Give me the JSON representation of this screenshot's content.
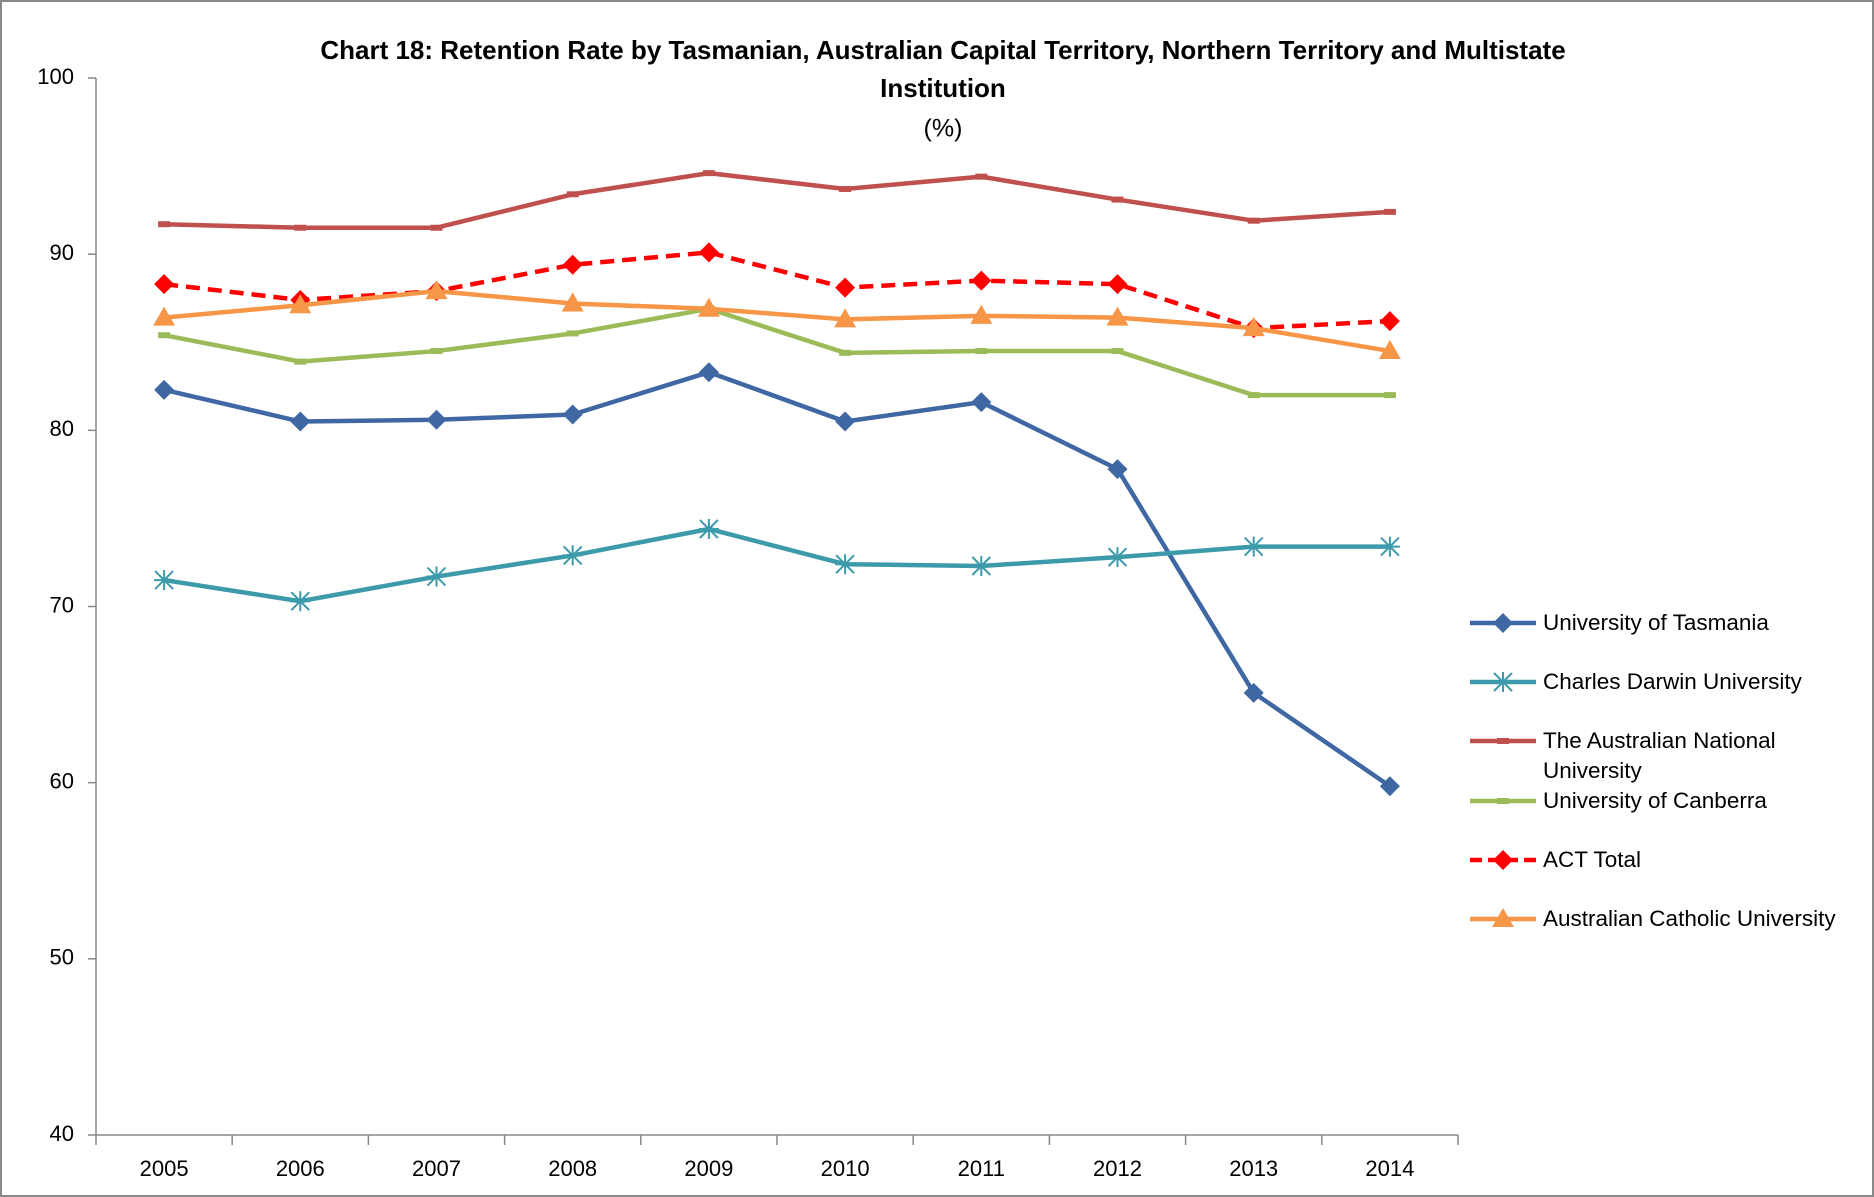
{
  "chart_data": {
    "type": "line",
    "title": [
      "Chart 18: Retention Rate by Tasmanian,  Australian Capital Territory, Northern Territory and Multistate",
      "Institution"
    ],
    "subtitle": "(%)",
    "categories": [
      "2005",
      "2006",
      "2007",
      "2008",
      "2009",
      "2010",
      "2011",
      "2012",
      "2013",
      "2014"
    ],
    "ylim": [
      40,
      100
    ],
    "yticks": [
      40,
      50,
      60,
      70,
      80,
      90,
      100
    ],
    "series": [
      {
        "name": "University of Tasmania",
        "color": "#3f67a3",
        "marker": "diamond",
        "dashed": false,
        "values": [
          82.3,
          80.5,
          80.6,
          80.9,
          83.3,
          80.5,
          81.6,
          77.8,
          65.1,
          59.8
        ]
      },
      {
        "name": "Charles Darwin University",
        "color": "#3c9aaa",
        "marker": "asterisk",
        "dashed": false,
        "values": [
          71.5,
          70.3,
          71.7,
          72.9,
          74.4,
          72.4,
          72.3,
          72.8,
          73.4,
          73.4
        ]
      },
      {
        "name": "The Australian National University",
        "color": "#c0504d",
        "marker": "dash",
        "dashed": false,
        "values": [
          91.7,
          91.5,
          91.5,
          93.4,
          94.6,
          93.7,
          94.4,
          93.1,
          91.9,
          92.4
        ]
      },
      {
        "name": "University of Canberra",
        "color": "#9bbb59",
        "marker": "dash",
        "dashed": false,
        "values": [
          85.4,
          83.9,
          84.5,
          85.5,
          86.9,
          84.4,
          84.5,
          84.5,
          82.0,
          82.0
        ]
      },
      {
        "name": "ACT Total",
        "color": "#ff0000",
        "marker": "diamond",
        "dashed": true,
        "values": [
          88.3,
          87.4,
          87.9,
          89.4,
          90.1,
          88.1,
          88.5,
          88.3,
          85.8,
          86.2
        ]
      },
      {
        "name": "Australian Catholic University",
        "color": "#f79646",
        "marker": "triangle",
        "dashed": false,
        "values": [
          86.4,
          87.1,
          87.9,
          87.2,
          86.9,
          86.3,
          86.5,
          86.4,
          85.8,
          84.5
        ]
      }
    ]
  }
}
